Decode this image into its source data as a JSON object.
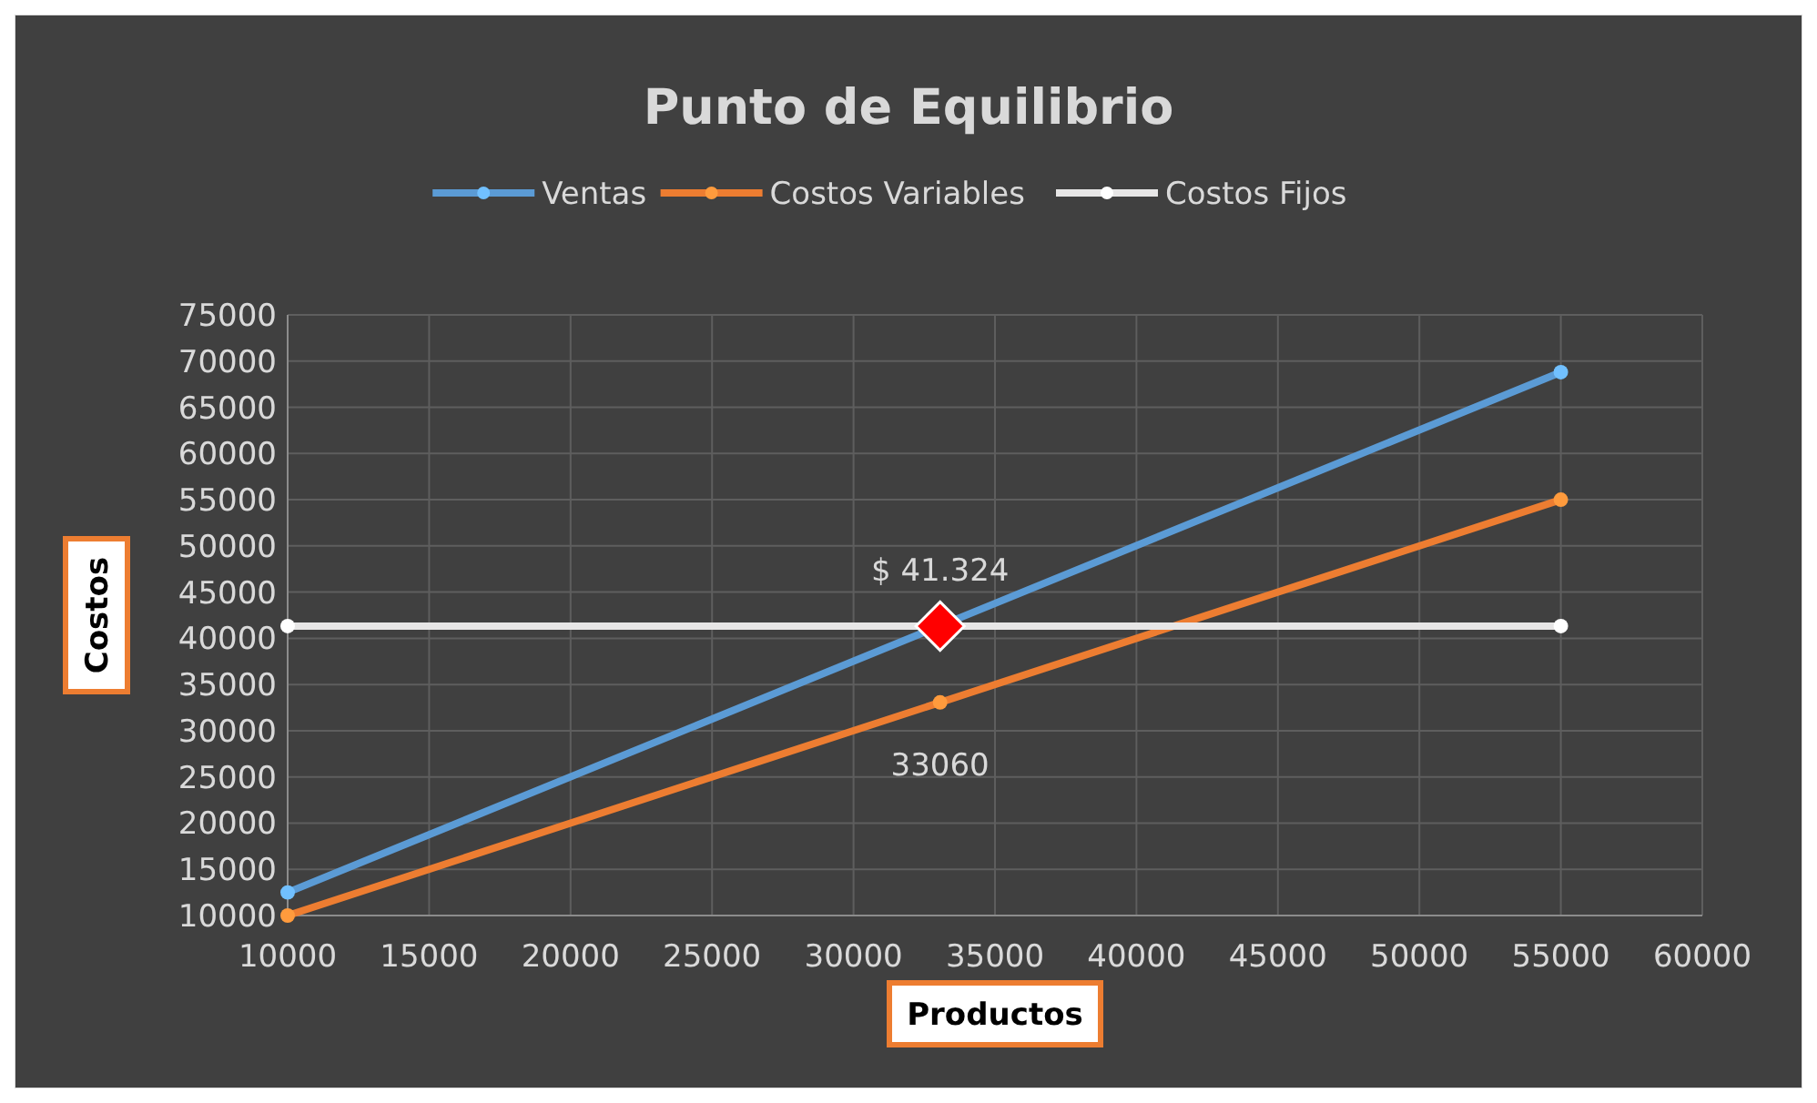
{
  "chart_data": {
    "type": "line",
    "title": "Punto de Equilibrio",
    "xlabel": "Productos",
    "ylabel": "Costos",
    "xlim": [
      10000,
      60000
    ],
    "xticks": [
      10000,
      15000,
      20000,
      25000,
      30000,
      35000,
      40000,
      45000,
      50000,
      55000,
      60000
    ],
    "ylim": [
      10000,
      75000
    ],
    "yticks": [
      10000,
      15000,
      20000,
      25000,
      30000,
      35000,
      40000,
      45000,
      50000,
      55000,
      60000,
      65000,
      70000,
      75000
    ],
    "grid": true,
    "legend": "top",
    "marker": "circle",
    "line_style": "solid",
    "series": [
      {
        "name": "Ventas",
        "color": "#5b9bd5",
        "x": [
          10000,
          55000
        ],
        "values": [
          12500,
          68800
        ]
      },
      {
        "name": "Costos Variables",
        "color": "#ed7d31",
        "x": [
          10000,
          33060,
          55000
        ],
        "values": [
          10000,
          33060,
          55000
        ],
        "value_labels": [
          null,
          "33060",
          null
        ]
      },
      {
        "name": "Costos Fijos",
        "color": "#e7e6e6",
        "x": [
          10000,
          55000
        ],
        "values": [
          41324,
          41324
        ]
      },
      {
        "type": "scatter",
        "marker": "diamond",
        "color": "#ff0000",
        "x": [
          33060
        ],
        "values": [
          41324
        ],
        "value_labels": [
          "$ 41.324"
        ]
      }
    ]
  }
}
